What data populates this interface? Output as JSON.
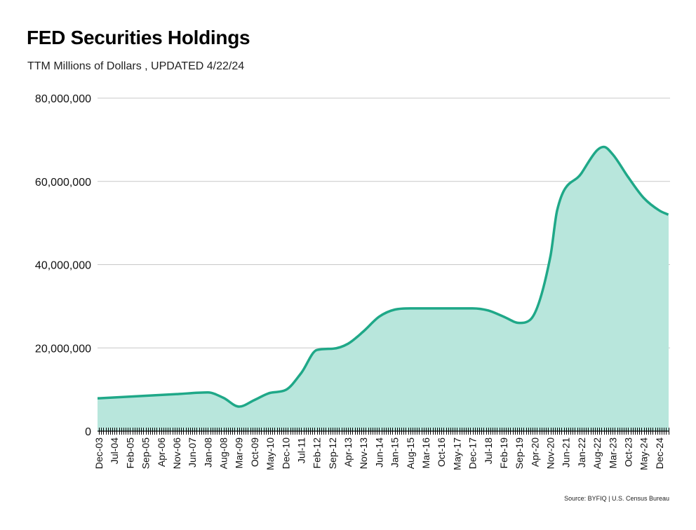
{
  "chart_data": {
    "type": "area",
    "title": "FED Securities Holdings",
    "subtitle": "TTM Millions of Dollars , UPDATED 4/22/24",
    "source": "Source: BYFIQ | U.S. Census Bureau",
    "xlabel": "",
    "ylabel": "",
    "ylim": [
      0,
      80000000
    ],
    "grid": true,
    "legend": "none",
    "y_ticks": [
      {
        "value": 0,
        "label": "0"
      },
      {
        "value": 20000000,
        "label": "20,000,000"
      },
      {
        "value": 40000000,
        "label": "40,000,000"
      },
      {
        "value": 60000000,
        "label": "60,000,000"
      },
      {
        "value": 80000000,
        "label": "80,000,000"
      }
    ],
    "x_tick_labels": [
      "Dec-03",
      "Jul-04",
      "Feb-05",
      "Sep-05",
      "Apr-06",
      "Nov-06",
      "Jun-07",
      "Jan-08",
      "Aug-08",
      "Mar-09",
      "Oct-09",
      "May-10",
      "Dec-10",
      "Jul-11",
      "Feb-12",
      "Sep-12",
      "Apr-13",
      "Nov-13",
      "Jun-14",
      "Jan-15",
      "Aug-15",
      "Mar-16",
      "Oct-16",
      "May-17",
      "Dec-17",
      "Jul-18",
      "Feb-19",
      "Sep-19",
      "Apr-20",
      "Nov-20",
      "Jun-21",
      "Jan-22",
      "Aug-22",
      "Mar-23",
      "Oct-23",
      "May-24",
      "Dec-24"
    ],
    "x_tick_label_every_months": 7,
    "total_months": 256,
    "series": [
      {
        "name": "FED Securities Holdings",
        "color": "#1fa888",
        "fill": "#b8e6dc",
        "points": [
          {
            "x": "Dec-03",
            "m": 0,
            "y": 7900000
          },
          {
            "x": "Nov-06",
            "m": 35,
            "y": 8900000
          },
          {
            "x": "Jan-08",
            "m": 49,
            "y": 9300000
          },
          {
            "x": "Aug-08",
            "m": 56,
            "y": 8000000
          },
          {
            "x": "Mar-09",
            "m": 63,
            "y": 5900000
          },
          {
            "x": "Oct-09",
            "m": 70,
            "y": 7500000
          },
          {
            "x": "May-10",
            "m": 77,
            "y": 9200000
          },
          {
            "x": "Dec-10",
            "m": 84,
            "y": 9900000
          },
          {
            "x": "Jul-11",
            "m": 91,
            "y": 14000000
          },
          {
            "x": "Feb-12",
            "m": 98,
            "y": 19500000
          },
          {
            "x": "Sep-12",
            "m": 105,
            "y": 19800000
          },
          {
            "x": "Apr-13",
            "m": 112,
            "y": 21000000
          },
          {
            "x": "Nov-13",
            "m": 119,
            "y": 24000000
          },
          {
            "x": "Jun-14",
            "m": 126,
            "y": 27500000
          },
          {
            "x": "Jan-15",
            "m": 133,
            "y": 29200000
          },
          {
            "x": "Aug-15",
            "m": 140,
            "y": 29500000
          },
          {
            "x": "Dec-17",
            "m": 168,
            "y": 29500000
          },
          {
            "x": "Jul-18",
            "m": 175,
            "y": 29000000
          },
          {
            "x": "Feb-19",
            "m": 182,
            "y": 27500000
          },
          {
            "x": "Sep-19",
            "m": 189,
            "y": 26000000
          },
          {
            "x": "Feb-20",
            "m": 194,
            "y": 26800000
          },
          {
            "x": "Nov-20",
            "m": 203,
            "y": 42000000
          },
          {
            "x": "Feb-21",
            "m": 206,
            "y": 53000000
          },
          {
            "x": "Jan-22",
            "m": 217,
            "y": 62000000
          },
          {
            "x": "Aug-22",
            "m": 224,
            "y": 67500000
          },
          {
            "x": "Nov-22",
            "m": 227,
            "y": 68300000
          },
          {
            "x": "Mar-23",
            "m": 231,
            "y": 66500000
          },
          {
            "x": "Oct-23",
            "m": 238,
            "y": 61000000
          },
          {
            "x": "May-24",
            "m": 245,
            "y": 56000000
          },
          {
            "x": "Dec-24",
            "m": 252,
            "y": 53000000
          },
          {
            "x": "Apr-25",
            "m": 256,
            "y": 52000000
          }
        ]
      }
    ]
  }
}
